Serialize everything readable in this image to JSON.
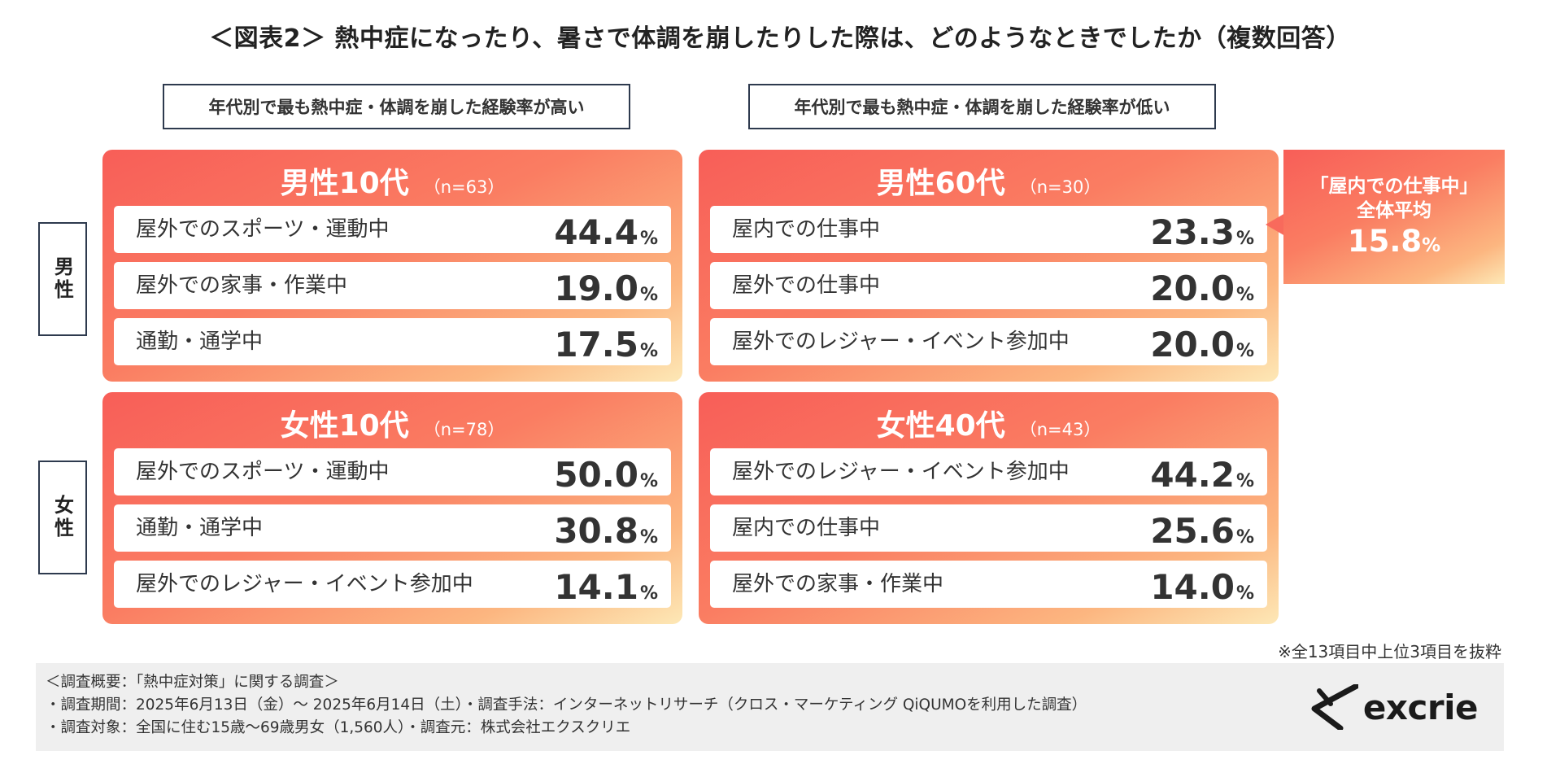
{
  "title": "＜図表2＞ 熱中症になったり、暑さで体調を崩したりした際は、どのようなときでしたか（複数回答）",
  "column_headers": {
    "high": "年代別で最も熱中症・体調を崩した経験率が高い",
    "low": "年代別で最も熱中症・体調を崩した経験率が低い"
  },
  "side_labels": {
    "male": "男性",
    "female": "女性"
  },
  "chart_data": {
    "type": "table",
    "title": "＜図表2＞ 熱中症になったり、暑さで体調を崩したりした際は、どのようなときでしたか（複数回答）",
    "unit": "%",
    "panels": [
      {
        "label": "男性10代",
        "n": "（n=63）",
        "items": [
          {
            "name": "屋外でのスポーツ・運動中",
            "value": "44.4"
          },
          {
            "name": "屋外での家事・作業中",
            "value": "19.0"
          },
          {
            "name": "通勤・通学中",
            "value": "17.5"
          }
        ]
      },
      {
        "label": "男性60代",
        "n": "（n=30）",
        "items": [
          {
            "name": "屋内での仕事中",
            "value": "23.3"
          },
          {
            "name": "屋外での仕事中",
            "value": "20.0"
          },
          {
            "name": "屋外でのレジャー・イベント参加中",
            "value": "20.0"
          }
        ]
      },
      {
        "label": "女性10代",
        "n": "（n=78）",
        "items": [
          {
            "name": "屋外でのスポーツ・運動中",
            "value": "50.0"
          },
          {
            "name": "通勤・通学中",
            "value": "30.8"
          },
          {
            "name": "屋外でのレジャー・イベント参加中",
            "value": "14.1"
          }
        ]
      },
      {
        "label": "女性40代",
        "n": "（n=43）",
        "items": [
          {
            "name": "屋外でのレジャー・イベント参加中",
            "value": "44.2"
          },
          {
            "name": "屋内での仕事中",
            "value": "25.6"
          },
          {
            "name": "屋外での家事・作業中",
            "value": "14.0"
          }
        ]
      }
    ]
  },
  "callout": {
    "line1": "「屋内での仕事中」",
    "line2": "全体平均",
    "value": "15.8",
    "unit": "%"
  },
  "note": "※全13項目中上位3項目を抜粋",
  "footer": {
    "line1": "＜調査概要：「熱中症対策」に関する調査＞",
    "line2": "・調査期間：2025年6月13日（金）～ 2025年6月14日（土）・調査手法：インターネットリサーチ（クロス・マーケティング QiQUMOを利用した調査）",
    "line3": "・調査対象：全国に住む15歳～69歳男女（1,560人）・調査元：株式会社エクスクリエ"
  },
  "logo": {
    "text": "excrie",
    "icon": "excrie-mark-icon"
  },
  "colors": {
    "panel_start": "#f85e58",
    "panel_end": "#fde8b6",
    "text": "#333333",
    "border": "#2e3a4e"
  }
}
